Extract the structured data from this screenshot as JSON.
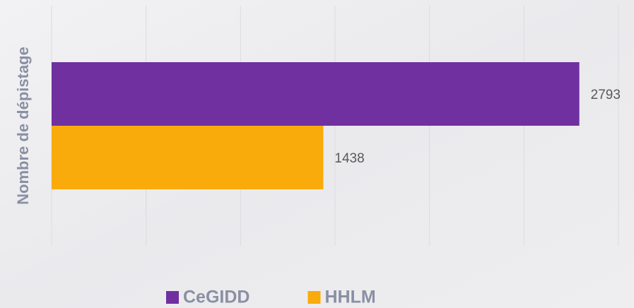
{
  "chart_data": {
    "type": "hbar",
    "y_label": "Nombre de dépistage",
    "categories": [
      null
    ],
    "series": [
      {
        "name": "CeGIDD",
        "color": "#7030a0",
        "values": [
          2793
        ]
      },
      {
        "name": "HHLM",
        "color": "#f9ab0b",
        "values": [
          1438
        ]
      }
    ],
    "xlim": [
      0,
      3000
    ],
    "xticks": [
      0,
      500,
      1000,
      1500,
      2000,
      2500,
      3000
    ],
    "grid": true,
    "legend": "bottom"
  }
}
